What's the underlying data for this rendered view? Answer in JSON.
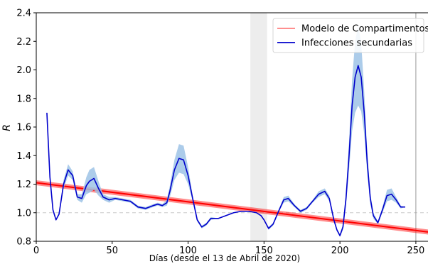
{
  "chart_data": {
    "type": "line",
    "title": "",
    "xlabel": "Días (desde el 13 de Abril de 2020)",
    "ylabel": "R",
    "xlim": [
      0,
      258
    ],
    "ylim": [
      0.8,
      2.4
    ],
    "xticks": [
      0,
      50,
      100,
      150,
      200,
      250
    ],
    "xtick_labels": [
      "0",
      "50",
      "100",
      "150",
      "200",
      "250"
    ],
    "yticks": [
      0.8,
      1.0,
      1.2,
      1.4,
      1.6,
      1.8,
      2.0,
      2.2,
      2.4
    ],
    "ytick_labels": [
      "0.8",
      "1.0",
      "1.2",
      "1.4",
      "1.6",
      "1.8",
      "2.0",
      "2.2",
      "2.4"
    ],
    "grid": false,
    "legend_position": "top-right",
    "reference_lines": {
      "horizontal_dashed_y": 1.0,
      "vertical_line_x": 250,
      "shaded_span_x": [
        141,
        152
      ]
    },
    "series": [
      {
        "name": "Modelo de Compartimentos",
        "color": "#ff0000",
        "style": "linear-trend-band",
        "x": [
          0,
          258
        ],
        "y": [
          1.21,
          0.865
        ],
        "band_width": 0.035
      },
      {
        "name": "Infecciones secundarias",
        "color": "#0000cc",
        "band_color": "#9ec3e6",
        "x": [
          7,
          9,
          11,
          13,
          15,
          18,
          21,
          24,
          27,
          30,
          33,
          35,
          38,
          41,
          44,
          48,
          52,
          57,
          62,
          67,
          72,
          77,
          80,
          83,
          86,
          88,
          91,
          94,
          97,
          100,
          103,
          106,
          109,
          112,
          115,
          120,
          125,
          130,
          135,
          140,
          145,
          148,
          150,
          153,
          156,
          160,
          163,
          166,
          170,
          174,
          178,
          182,
          186,
          190,
          193,
          196,
          198,
          200,
          202,
          204,
          206,
          208,
          210,
          212,
          214,
          216,
          218,
          220,
          222,
          225,
          228,
          231,
          234,
          237,
          240,
          243
        ],
        "y": [
          1.7,
          1.25,
          1.02,
          0.95,
          0.99,
          1.2,
          1.3,
          1.26,
          1.11,
          1.1,
          1.19,
          1.22,
          1.24,
          1.17,
          1.11,
          1.09,
          1.1,
          1.09,
          1.08,
          1.04,
          1.03,
          1.05,
          1.06,
          1.05,
          1.07,
          1.15,
          1.3,
          1.38,
          1.37,
          1.26,
          1.1,
          0.95,
          0.9,
          0.92,
          0.96,
          0.96,
          0.98,
          1.0,
          1.01,
          1.01,
          1.0,
          0.98,
          0.95,
          0.89,
          0.92,
          1.02,
          1.09,
          1.1,
          1.05,
          1.01,
          1.03,
          1.08,
          1.13,
          1.15,
          1.1,
          0.95,
          0.88,
          0.84,
          0.9,
          1.1,
          1.4,
          1.75,
          1.95,
          2.03,
          1.95,
          1.7,
          1.35,
          1.1,
          0.98,
          0.93,
          1.02,
          1.12,
          1.13,
          1.09,
          1.04,
          1.04
        ],
        "band_halfwidth": [
          0.0,
          0.0,
          0.0,
          0.0,
          0.01,
          0.03,
          0.04,
          0.03,
          0.02,
          0.03,
          0.06,
          0.08,
          0.08,
          0.05,
          0.02,
          0.02,
          0.01,
          0.01,
          0.01,
          0.01,
          0.01,
          0.01,
          0.01,
          0.01,
          0.02,
          0.04,
          0.07,
          0.1,
          0.1,
          0.06,
          0.02,
          0.01,
          0.01,
          0.01,
          0.01,
          0.0,
          0.0,
          0.0,
          0.0,
          0.0,
          0.0,
          0.0,
          0.0,
          0.01,
          0.01,
          0.01,
          0.02,
          0.02,
          0.01,
          0.01,
          0.01,
          0.01,
          0.02,
          0.02,
          0.02,
          0.01,
          0.01,
          0.01,
          0.02,
          0.05,
          0.1,
          0.18,
          0.25,
          0.28,
          0.24,
          0.15,
          0.08,
          0.04,
          0.02,
          0.01,
          0.02,
          0.04,
          0.04,
          0.02,
          0.01,
          0.0
        ]
      }
    ]
  }
}
